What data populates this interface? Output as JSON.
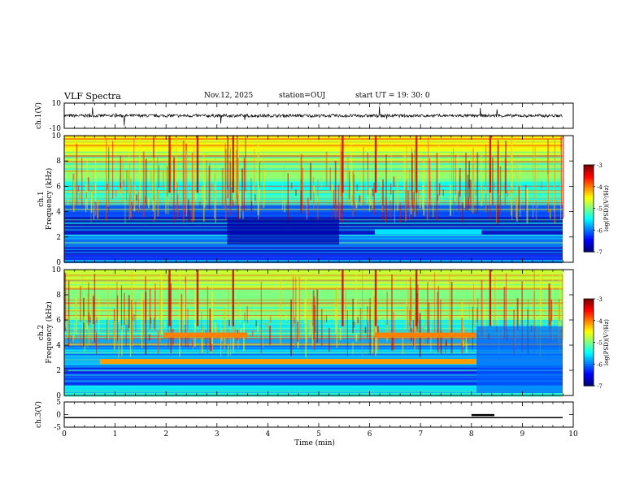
{
  "header": {
    "title": "VLF Spectra",
    "date": "Nov.12, 2025",
    "station": "station=OUJ",
    "start": "start  UT =   19: 30: 0"
  },
  "chart_data": [
    {
      "type": "line",
      "name": "ch1-waveform",
      "ylabel": "ch.1(V)",
      "ylim": [
        -10,
        10
      ],
      "yticks": [
        10,
        -10
      ],
      "xlim": [
        0,
        10
      ]
    },
    {
      "type": "heatmap",
      "name": "ch1-spectrogram",
      "ylabel": "ch.1",
      "ylabel2": "Frequency  (kHz)",
      "ylim": [
        0,
        10
      ],
      "yticks": [
        0,
        2,
        4,
        6,
        8,
        10
      ],
      "colorbar": {
        "label": "log(PSD)(V²/Hz)",
        "range": [
          -7,
          -3
        ],
        "ticks": [
          -3,
          -4,
          -5,
          -6,
          -7
        ]
      }
    },
    {
      "type": "heatmap",
      "name": "ch2-spectrogram",
      "ylabel": "ch.2",
      "ylabel2": "Frequency  (kHz)",
      "ylim": [
        0,
        10
      ],
      "yticks": [
        0,
        2,
        4,
        6,
        8,
        10
      ],
      "colorbar": {
        "label": "log(PSD)(V²/Hz)",
        "range": [
          -7,
          -3
        ],
        "ticks": [
          -3,
          -4,
          -5,
          -6,
          -7
        ]
      }
    },
    {
      "type": "line",
      "name": "ch3-signal",
      "ylabel": "ch.3(V)",
      "ylim": [
        -5,
        5
      ],
      "yticks": [
        5,
        0,
        -5
      ],
      "baseline": -1.2,
      "pulse": {
        "x": [
          8.0,
          8.45
        ],
        "y": -0.2
      },
      "xlim": [
        0,
        10
      ],
      "xticks": [
        0,
        1,
        2,
        3,
        4,
        5,
        6,
        7,
        8,
        9,
        10
      ],
      "xlabel": "Time  (min)"
    }
  ]
}
